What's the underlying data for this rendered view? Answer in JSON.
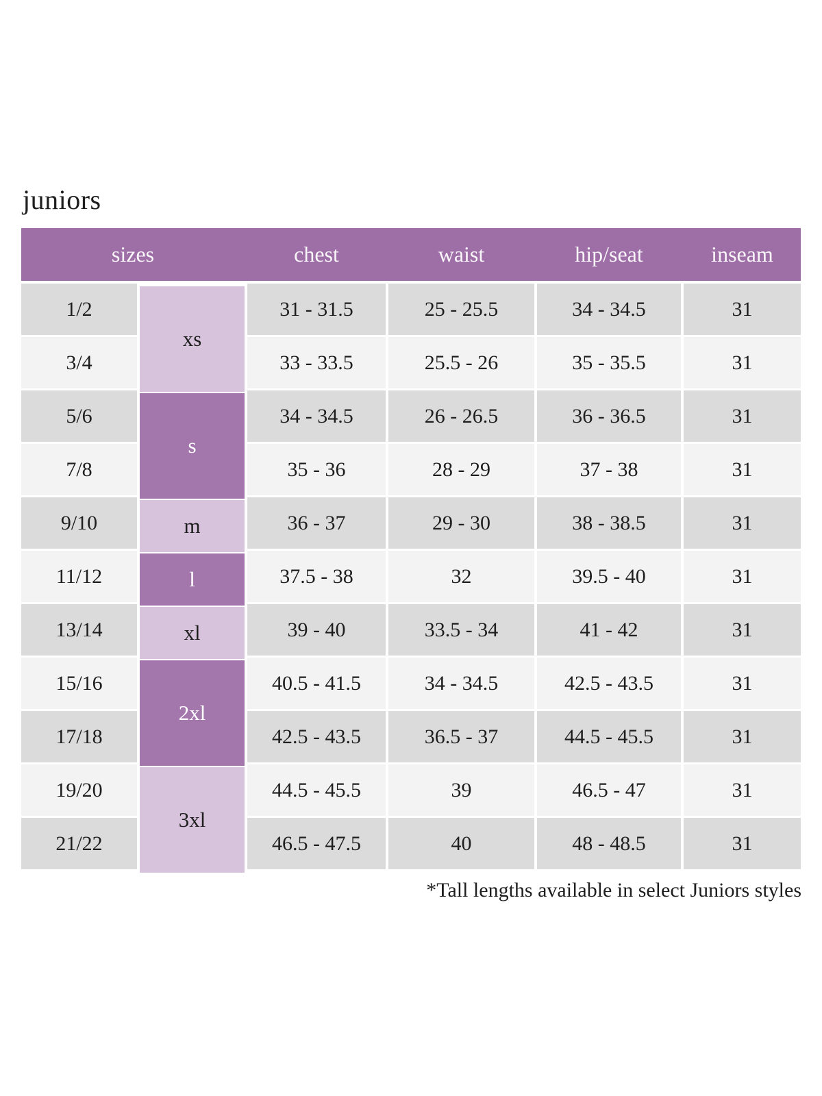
{
  "page": {
    "title": "juniors",
    "footnote": "*Tall lengths available in select Juniors styles"
  },
  "colors": {
    "header_bg": "#9d6fa6",
    "header_text": "#f8f4f8",
    "size_dark_bg": "#a377ac",
    "size_dark_text": "#ffffff",
    "size_light_bg": "#d7c3dc",
    "size_light_text": "#1e1e1e",
    "row_dark": "#dcdbdc",
    "row_light": "#f4f3f4",
    "text": "#1e1e1e"
  },
  "table": {
    "headers": [
      "sizes",
      "chest",
      "waist",
      "hip/seat",
      "inseam"
    ],
    "size_groups": [
      {
        "label": "xs",
        "rows": 2,
        "shade": "light"
      },
      {
        "label": "s",
        "rows": 2,
        "shade": "dark"
      },
      {
        "label": "m",
        "rows": 1,
        "shade": "light"
      },
      {
        "label": "l",
        "rows": 1,
        "shade": "dark"
      },
      {
        "label": "xl",
        "rows": 1,
        "shade": "light"
      },
      {
        "label": "2xl",
        "rows": 2,
        "shade": "dark"
      },
      {
        "label": "3xl",
        "rows": 2,
        "shade": "light"
      }
    ],
    "rows": [
      {
        "size": "1/2",
        "chest": "31 - 31.5",
        "waist": "25 - 25.5",
        "hip_seat": "34 - 34.5",
        "inseam": "31"
      },
      {
        "size": "3/4",
        "chest": "33 - 33.5",
        "waist": "25.5 - 26",
        "hip_seat": "35 - 35.5",
        "inseam": "31"
      },
      {
        "size": "5/6",
        "chest": "34 - 34.5",
        "waist": "26 - 26.5",
        "hip_seat": "36 - 36.5",
        "inseam": "31"
      },
      {
        "size": "7/8",
        "chest": "35 - 36",
        "waist": "28 - 29",
        "hip_seat": "37 - 38",
        "inseam": "31"
      },
      {
        "size": "9/10",
        "chest": "36 - 37",
        "waist": "29 - 30",
        "hip_seat": "38 - 38.5",
        "inseam": "31"
      },
      {
        "size": "11/12",
        "chest": "37.5 - 38",
        "waist": "32",
        "hip_seat": "39.5 - 40",
        "inseam": "31"
      },
      {
        "size": "13/14",
        "chest": "39 - 40",
        "waist": "33.5 - 34",
        "hip_seat": "41 - 42",
        "inseam": "31"
      },
      {
        "size": "15/16",
        "chest": "40.5 - 41.5",
        "waist": "34 - 34.5",
        "hip_seat": "42.5 - 43.5",
        "inseam": "31"
      },
      {
        "size": "17/18",
        "chest": "42.5 - 43.5",
        "waist": "36.5 - 37",
        "hip_seat": "44.5 - 45.5",
        "inseam": "31"
      },
      {
        "size": "19/20",
        "chest": "44.5 - 45.5",
        "waist": "39",
        "hip_seat": "46.5 - 47",
        "inseam": "31"
      },
      {
        "size": "21/22",
        "chest": "46.5 - 47.5",
        "waist": "40",
        "hip_seat": "48 - 48.5",
        "inseam": "31"
      }
    ]
  }
}
